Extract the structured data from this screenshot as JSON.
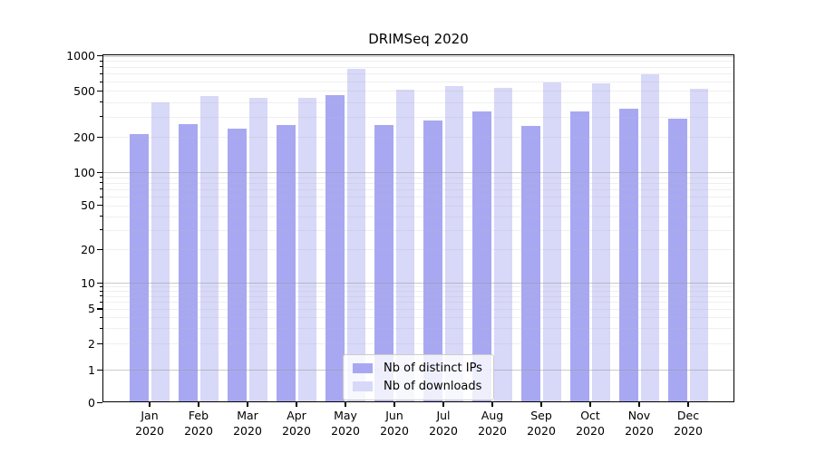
{
  "chart_data": {
    "type": "bar",
    "title": "DRIMSeq 2020",
    "xlabel": "",
    "ylabel": "",
    "yscale": "symlog",
    "ylim": [
      0,
      1000
    ],
    "grid": true,
    "legend_position": "lower center",
    "categories": [
      "Jan",
      "Feb",
      "Mar",
      "Apr",
      "May",
      "Jun",
      "Jul",
      "Aug",
      "Sep",
      "Oct",
      "Nov",
      "Dec"
    ],
    "x_sub_label": "2020",
    "y_tick_labels": [
      "1000",
      "500",
      "200",
      "100",
      "50",
      "20",
      "10",
      "5",
      "2",
      "1",
      "0"
    ],
    "y_tick_values": [
      1000,
      500,
      200,
      100,
      50,
      20,
      10,
      5,
      2,
      1,
      0
    ],
    "series": [
      {
        "name": "Nb of distinct IPs",
        "color": "#a8a8f2",
        "values": [
          212,
          258,
          236,
          252,
          458,
          253,
          278,
          330,
          251,
          332,
          348,
          289
        ]
      },
      {
        "name": "Nb of downloads",
        "color": "#d8d8f8",
        "values": [
          395,
          452,
          438,
          436,
          770,
          508,
          544,
          526,
          586,
          581,
          695,
          521
        ]
      }
    ]
  },
  "legend": {
    "items": [
      {
        "label": "Nb of distinct IPs"
      },
      {
        "label": "Nb of downloads"
      }
    ]
  }
}
